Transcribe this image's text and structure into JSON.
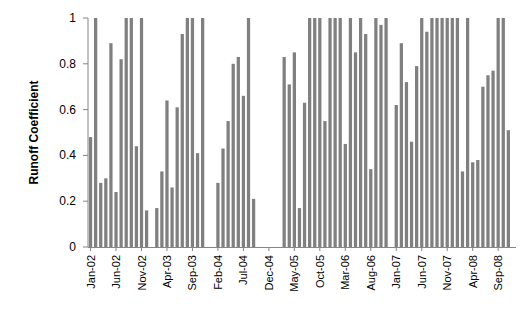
{
  "chart_data": {
    "type": "bar",
    "y_label": "Runoff Coefficient",
    "categories": [
      "Jan-02",
      null,
      null,
      null,
      null,
      "Jun-02",
      null,
      null,
      null,
      null,
      "Nov-02",
      null,
      null,
      null,
      null,
      "Apr-03",
      null,
      null,
      null,
      null,
      "Sep-03",
      null,
      null,
      null,
      null,
      "Feb-04",
      null,
      null,
      null,
      null,
      "Jul-04",
      null,
      null,
      null,
      null,
      "Dec-04",
      null,
      null,
      null,
      null,
      "May-05",
      null,
      null,
      null,
      null,
      "Oct-05",
      null,
      null,
      null,
      null,
      "Mar-06",
      null,
      null,
      null,
      null,
      "Aug-06",
      null,
      null,
      null,
      null,
      "Jan-07",
      null,
      null,
      null,
      null,
      "Jun-07",
      null,
      null,
      null,
      null,
      "Nov-07",
      null,
      null,
      null,
      null,
      "Apr-08",
      null,
      null,
      null,
      null,
      "Sep-08",
      null,
      null,
      null
    ],
    "values": [
      0.48,
      1.0,
      0.28,
      0.3,
      0.89,
      0.24,
      0.82,
      1.0,
      1.0,
      0.44,
      1.0,
      0.16,
      0,
      0.17,
      0.33,
      0.64,
      0.26,
      0.61,
      0.93,
      1.0,
      1.0,
      0.41,
      1.0,
      0,
      0,
      0.28,
      0.43,
      0.55,
      0.8,
      0.83,
      0.66,
      1.0,
      0.21,
      0,
      0,
      0,
      0,
      0,
      0.83,
      0.71,
      0.85,
      0.17,
      0.63,
      1.0,
      1.0,
      1.0,
      0.55,
      1.0,
      1.0,
      1.0,
      0.45,
      1.0,
      0.85,
      1.0,
      0.93,
      0.34,
      1.0,
      0.97,
      1.0,
      0,
      0.62,
      0.89,
      0.72,
      0.46,
      0.79,
      1.0,
      0.94,
      1.0,
      1.0,
      1.0,
      1.0,
      1.0,
      1.0,
      0.33,
      1.0,
      0.37,
      0.38,
      0.7,
      0.75,
      0.77,
      1.0,
      1.0,
      0.51,
      0
    ],
    "color": "#808080",
    "ylim": [
      0,
      1
    ],
    "yticks": [
      0,
      0.2,
      0.4,
      0.6,
      0.8,
      1
    ],
    "grid": false
  }
}
